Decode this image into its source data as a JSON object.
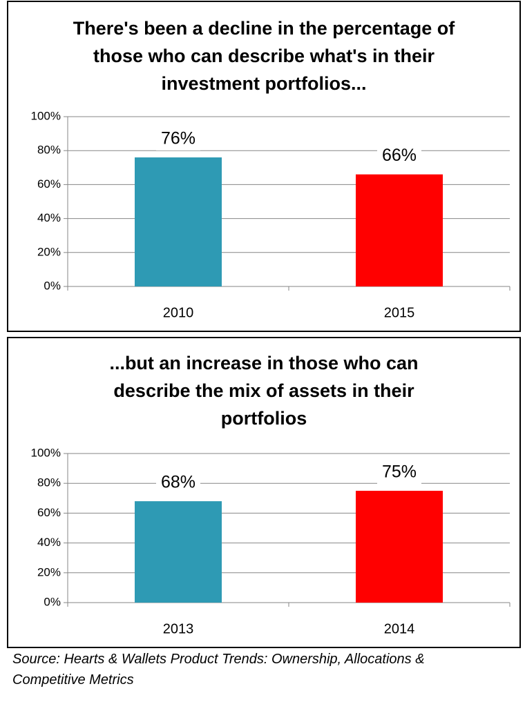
{
  "chart_data": [
    {
      "type": "bar",
      "title": "There's been a decline in the percentage of those who can describe what's in their investment portfolios...",
      "categories": [
        "2010",
        "2015"
      ],
      "values": [
        76,
        66
      ],
      "value_labels": [
        "76%",
        "66%"
      ],
      "colors": [
        "#2e9ab4",
        "#ff0000"
      ],
      "ylim": [
        0,
        100
      ],
      "yticks": [
        {
          "value": 0,
          "label": "0%"
        },
        {
          "value": 20,
          "label": "20%"
        },
        {
          "value": 40,
          "label": "40%"
        },
        {
          "value": 60,
          "label": "60%"
        },
        {
          "value": 80,
          "label": "80%"
        },
        {
          "value": 100,
          "label": "100%"
        }
      ],
      "grid": true
    },
    {
      "type": "bar",
      "title": "...but an increase in those who can describe the mix of assets in their portfolios",
      "categories": [
        "2013",
        "2014"
      ],
      "values": [
        68,
        75
      ],
      "value_labels": [
        "68%",
        "75%"
      ],
      "colors": [
        "#2e9ab4",
        "#ff0000"
      ],
      "ylim": [
        0,
        100
      ],
      "yticks": [
        {
          "value": 0,
          "label": "0%"
        },
        {
          "value": 20,
          "label": "20%"
        },
        {
          "value": 40,
          "label": "40%"
        },
        {
          "value": 60,
          "label": "60%"
        },
        {
          "value": 80,
          "label": "80%"
        },
        {
          "value": 100,
          "label": "100%"
        }
      ],
      "grid": true
    }
  ],
  "source": "Source: Hearts & Wallets Product Trends: Ownership, Allocations & Competitive Metrics"
}
